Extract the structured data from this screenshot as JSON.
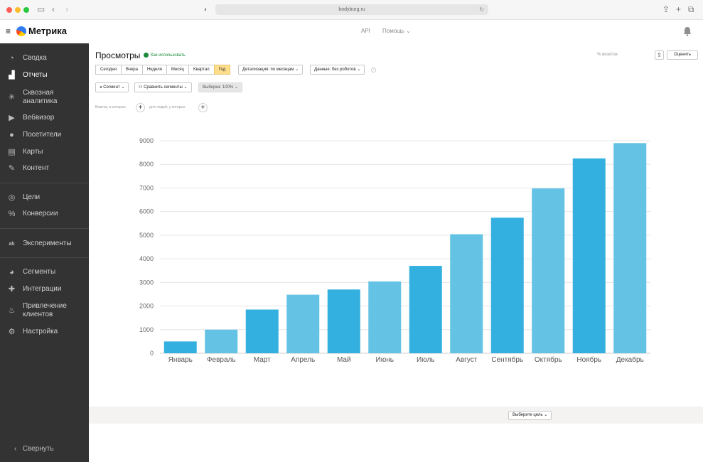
{
  "browser": {
    "url": "bodyburg.ru"
  },
  "header": {
    "logo_text": "Метрика",
    "api": "API",
    "help": "Помощь"
  },
  "sidebar": {
    "items": [
      {
        "label": "Сводка",
        "icon": "gauge-icon"
      },
      {
        "label": "Отчеты",
        "icon": "bar-chart-icon",
        "active": true
      },
      {
        "label": "Сквозная\nаналитика",
        "icon": "asterisk-icon"
      },
      {
        "label": "Вебвизор",
        "icon": "play-icon"
      },
      {
        "label": "Посетители",
        "icon": "user-icon"
      },
      {
        "label": "Карты",
        "icon": "map-icon"
      },
      {
        "label": "Контент",
        "icon": "pen-icon"
      },
      {
        "label": "Цели",
        "icon": "target-icon"
      },
      {
        "label": "Конверсии",
        "icon": "percent-icon"
      },
      {
        "label": "Эксперименты",
        "icon": "ab-icon"
      },
      {
        "label": "Сегменты",
        "icon": "pie-icon"
      },
      {
        "label": "Интеграции",
        "icon": "puzzle-icon"
      },
      {
        "label": "Привлечение\nклиентов",
        "icon": "flame-icon"
      },
      {
        "label": "Настройка",
        "icon": "gear-icon"
      }
    ],
    "collapse_label": "Свернуть"
  },
  "report": {
    "title": "Просмотры",
    "howto": "Как использовать",
    "visits_pct": "% визитов",
    "rate_label": "Оценить",
    "periods": [
      "Сегодня",
      "Вчера",
      "Неделя",
      "Месяц",
      "Квартал",
      "Год"
    ],
    "active_period": "Год",
    "detail": "Детализация: по месяцам",
    "data_filter": "Данные: без роботов",
    "segment": "Сегмент",
    "compare": "Сравнить сегменты",
    "sample": "Выборка: 100%",
    "filter_visits": "Визиты, в которых",
    "filter_people": "для людей, у которых",
    "goal_select": "Выберите цель"
  },
  "chart_data": {
    "type": "bar",
    "categories": [
      "Январь",
      "Февраль",
      "Март",
      "Апрель",
      "Май",
      "Июнь",
      "Июль",
      "Август",
      "Сентябрь",
      "Октябрь",
      "Ноябрь",
      "Декабрь"
    ],
    "values": [
      500,
      1000,
      1850,
      2480,
      2700,
      3040,
      3700,
      5040,
      5740,
      6980,
      8250,
      8900
    ],
    "ylim": [
      0,
      9000
    ],
    "yticks": [
      0,
      1000,
      2000,
      3000,
      4000,
      5000,
      6000,
      7000,
      8000,
      9000
    ],
    "grid": true,
    "colors": [
      "#33b0e0",
      "#64c2e4"
    ]
  }
}
